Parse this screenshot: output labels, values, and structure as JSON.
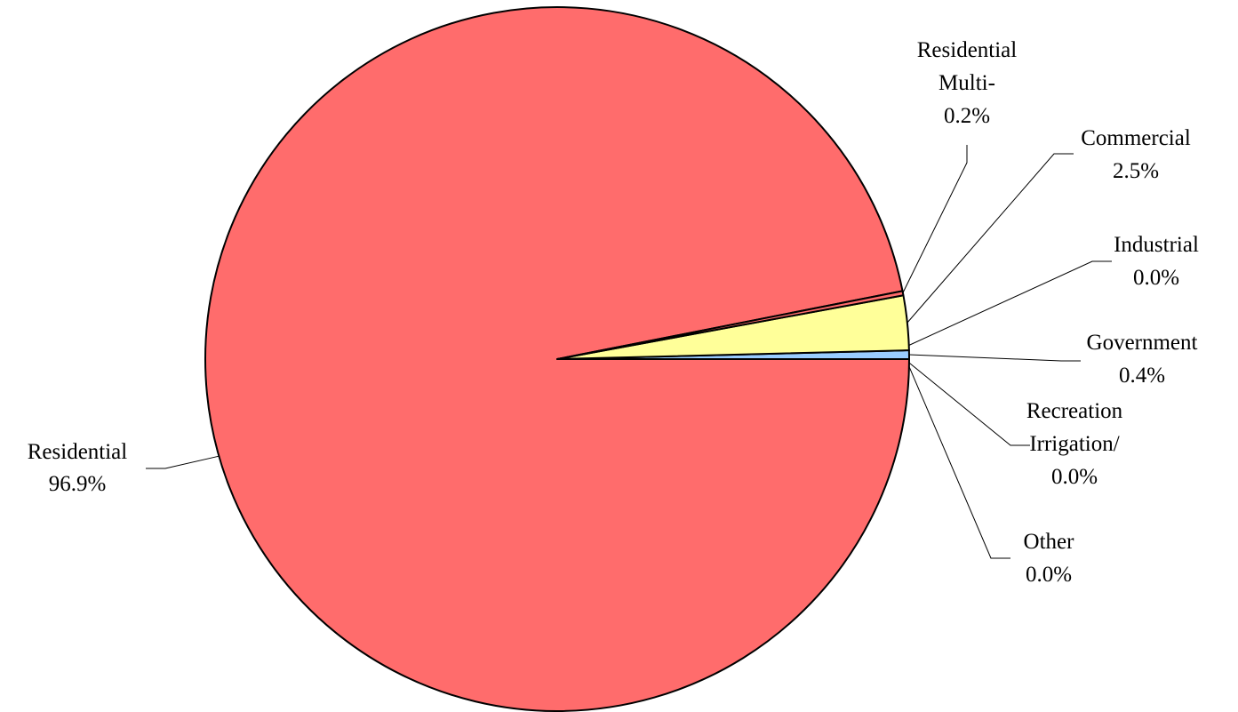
{
  "chart_data": {
    "type": "pie",
    "title": "",
    "slices": [
      {
        "key": "residential",
        "label_lines": [
          "Residential"
        ],
        "value": 96.9,
        "value_label": "96.9%",
        "color": "#FF6C6C"
      },
      {
        "key": "residential-multi",
        "label_lines": [
          "Residential",
          "Multi-"
        ],
        "value": 0.2,
        "value_label": "0.2%",
        "color": "#FF6C6C"
      },
      {
        "key": "commercial",
        "label_lines": [
          "Commercial"
        ],
        "value": 2.5,
        "value_label": "2.5%",
        "color": "#FFFF99"
      },
      {
        "key": "industrial",
        "label_lines": [
          "Industrial"
        ],
        "value": 0.0,
        "value_label": "0.0%",
        "color": "#FFFF99"
      },
      {
        "key": "government",
        "label_lines": [
          "Government"
        ],
        "value": 0.4,
        "value_label": "0.4%",
        "color": "#99CCFF"
      },
      {
        "key": "recreation-irrigation",
        "label_lines": [
          "Recreation",
          "Irrigation/"
        ],
        "value": 0.0,
        "value_label": "0.0%",
        "color": "#66CCFF"
      },
      {
        "key": "other",
        "label_lines": [
          "Other"
        ],
        "value": 0.0,
        "value_label": "0.0%",
        "color": "#FF6C6C"
      }
    ],
    "legend": "none",
    "labels": "outside with leader lines"
  }
}
